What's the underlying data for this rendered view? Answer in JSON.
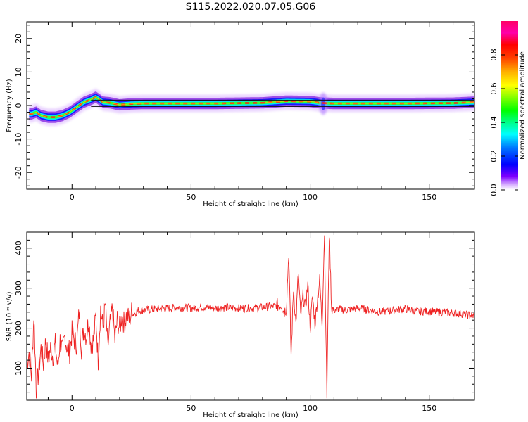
{
  "chart_data": [
    {
      "type": "heatmap",
      "title": "S115.2022.020.07.05.G06",
      "xlabel": "Height of straight line (km)",
      "ylabel": "Frequency (Hz)",
      "xlim": [
        -19,
        169
      ],
      "ylim": [
        -25,
        25
      ],
      "xticks": [
        0,
        50,
        100,
        150
      ],
      "yticks": [
        -20,
        -10,
        0,
        10,
        20
      ],
      "colorbar": {
        "label": "Normalized spectral amplitude",
        "range": [
          0,
          1
        ],
        "ticks": [
          0.0,
          0.2,
          0.4,
          0.6,
          0.8
        ],
        "colormap": "gist_ncar"
      },
      "ridge": {
        "x": [
          -17,
          -15,
          -13,
          -10,
          -7,
          -4,
          -1,
          2,
          5,
          8,
          10,
          13,
          16,
          20,
          25,
          30,
          40,
          60,
          80,
          90,
          100,
          104,
          106,
          110,
          120,
          140,
          160,
          169
        ],
        "y": [
          -2.5,
          -2.0,
          -3.0,
          -3.5,
          -3.5,
          -3.0,
          -2.0,
          -0.5,
          1.0,
          1.8,
          2.5,
          1.0,
          0.8,
          0.2,
          0.5,
          0.6,
          0.6,
          0.6,
          0.8,
          1.3,
          1.2,
          0.8,
          0.7,
          0.6,
          0.6,
          0.6,
          0.7,
          1.0
        ]
      },
      "reference_lines_hz": [
        -0.3,
        1.6
      ]
    },
    {
      "type": "line",
      "xlabel": "Height of straight line (km)",
      "ylabel": "SNR (10 * v/v)",
      "xlim": [
        -19,
        169
      ],
      "ylim": [
        20,
        440
      ],
      "xticks": [
        0,
        50,
        100,
        150
      ],
      "yticks": [
        100,
        200,
        300,
        400
      ],
      "color": "#ee2222",
      "series": [
        {
          "x": [
            -19,
            -18,
            -17,
            -16,
            -15,
            -14,
            -13,
            -12,
            -11,
            -10,
            -9,
            -8,
            -7,
            -6,
            -5,
            -4,
            -3,
            -2,
            -1,
            0,
            1,
            2,
            3,
            4,
            5,
            6,
            7,
            8,
            9,
            10,
            11,
            12,
            13,
            14,
            15,
            16,
            17,
            18,
            19,
            20,
            21,
            22,
            23,
            24,
            25,
            26,
            28,
            30,
            35,
            40,
            45,
            50,
            55,
            60,
            65,
            70,
            75,
            80,
            85,
            88,
            89,
            90,
            91,
            92,
            93,
            94,
            95,
            96,
            97,
            98,
            99,
            100,
            101,
            102,
            103,
            104,
            105,
            106,
            107,
            108,
            109,
            110,
            112,
            115,
            120,
            125,
            130,
            135,
            140,
            145,
            150,
            155,
            160,
            165,
            169
          ],
          "y": [
            110,
            140,
            80,
            235,
            45,
            90,
            150,
            110,
            170,
            120,
            150,
            130,
            160,
            100,
            170,
            140,
            180,
            150,
            140,
            190,
            170,
            160,
            240,
            150,
            200,
            180,
            220,
            160,
            170,
            230,
            120,
            250,
            200,
            260,
            150,
            210,
            250,
            170,
            220,
            200,
            230,
            210,
            235,
            220,
            240,
            235,
            245,
            245,
            248,
            250,
            252,
            250,
            253,
            250,
            252,
            250,
            250,
            252,
            255,
            260,
            240,
            250,
            390,
            130,
            300,
            210,
            340,
            230,
            280,
            250,
            310,
            200,
            280,
            210,
            270,
            320,
            210,
            440,
            30,
            440,
            250,
            245,
            248,
            245,
            250,
            245,
            240,
            245,
            248,
            242,
            242,
            240,
            238,
            235,
            230
          ]
        }
      ]
    }
  ]
}
